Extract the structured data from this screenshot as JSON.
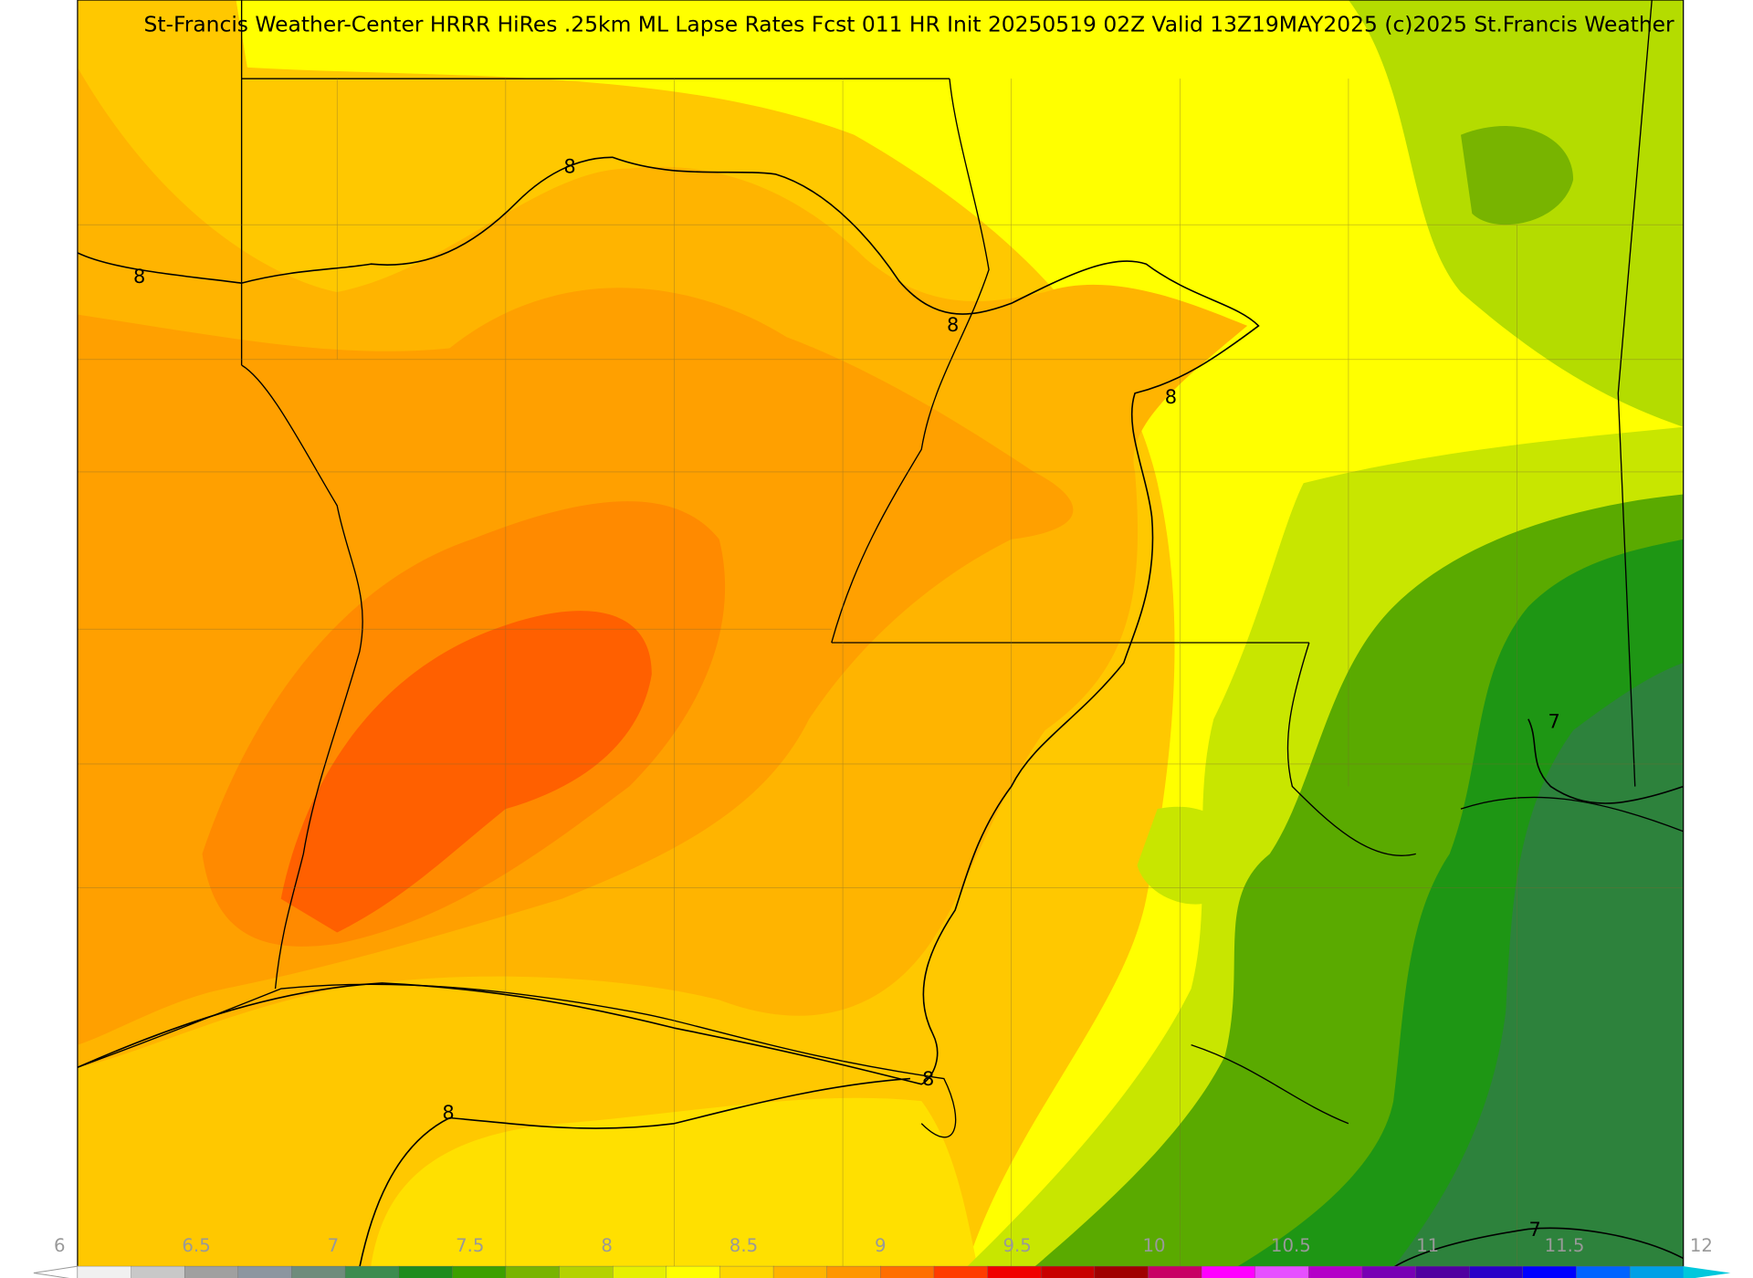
{
  "header": {
    "title": "St-Francis Weather-Center HRRR HiRes .25km ML Lapse Rates  Fcst 011 HR Init 20250519 02Z  Valid 13Z19MAY2025    (c)2025 St.Francis Weather"
  },
  "contour_labels": [
    "8",
    "8",
    "8",
    "8",
    "8",
    "8",
    "7",
    "7"
  ],
  "colorbar": {
    "ticks": [
      6,
      6.5,
      7,
      7.5,
      8,
      8.5,
      9,
      9.5,
      10,
      10.5,
      11,
      11.5,
      12
    ],
    "colors": [
      "#f0f0f0",
      "#c8c8c8",
      "#a0a0a0",
      "#8c96a0",
      "#6e8c7c",
      "#3c8c50",
      "#1e8c1e",
      "#3ca000",
      "#78b400",
      "#b4d200",
      "#e6f000",
      "#ffff00",
      "#ffd700",
      "#ffb400",
      "#ff9600",
      "#ff6e00",
      "#ff3c00",
      "#f00000",
      "#c80000",
      "#a00000",
      "#c80064",
      "#ff00ff",
      "#e650ff",
      "#b400c8",
      "#7800b4",
      "#5000a0",
      "#2800c8",
      "#0000ff",
      "#0064ff",
      "#00a0e6"
    ]
  }
}
